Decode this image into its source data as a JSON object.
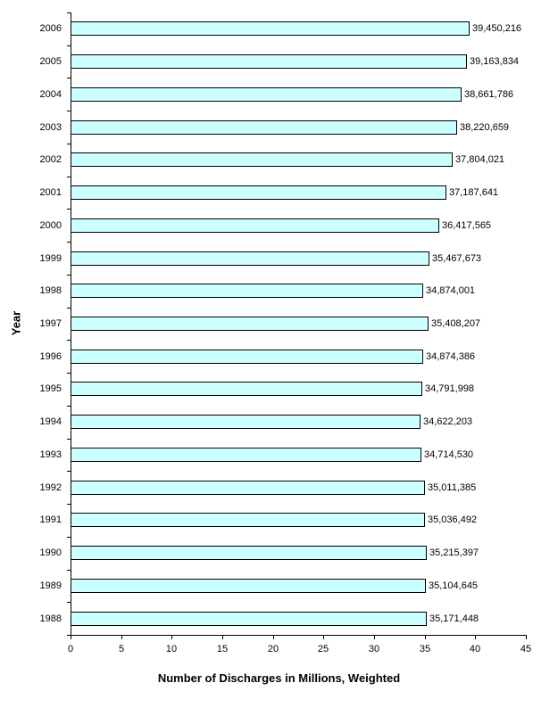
{
  "chart_data": {
    "type": "bar",
    "orientation": "horizontal",
    "title": "",
    "xlabel": "Number of Discharges in Millions, Weighted",
    "ylabel": "Year",
    "xlim": [
      0,
      45
    ],
    "x_ticks": [
      "0",
      "5",
      "10",
      "15",
      "20",
      "25",
      "30",
      "35",
      "40",
      "45"
    ],
    "grid": false,
    "legend": null,
    "bar_color": "#ccffff",
    "categories": [
      "2006",
      "2005",
      "2004",
      "2003",
      "2002",
      "2001",
      "2000",
      "1999",
      "1998",
      "1997",
      "1996",
      "1995",
      "1994",
      "1993",
      "1992",
      "1991",
      "1990",
      "1989",
      "1988"
    ],
    "values": [
      39450216,
      39163834,
      38661786,
      38220659,
      37804021,
      37187641,
      36417565,
      35467673,
      34874001,
      35408207,
      34874386,
      34791998,
      34622203,
      34714530,
      35011385,
      35036492,
      35215397,
      35104645,
      35171448
    ],
    "value_labels": [
      "39,450,216",
      "39,163,834",
      "38,661,786",
      "38,220,659",
      "37,804,021",
      "37,187,641",
      "36,417,565",
      "35,467,673",
      "34,874,001",
      "35,408,207",
      "34,874,386",
      "34,791,998",
      "34,622,203",
      "34,714,530",
      "35,011,385",
      "35,036,492",
      "35,215,397",
      "35,104,645",
      "35,171,448"
    ]
  }
}
